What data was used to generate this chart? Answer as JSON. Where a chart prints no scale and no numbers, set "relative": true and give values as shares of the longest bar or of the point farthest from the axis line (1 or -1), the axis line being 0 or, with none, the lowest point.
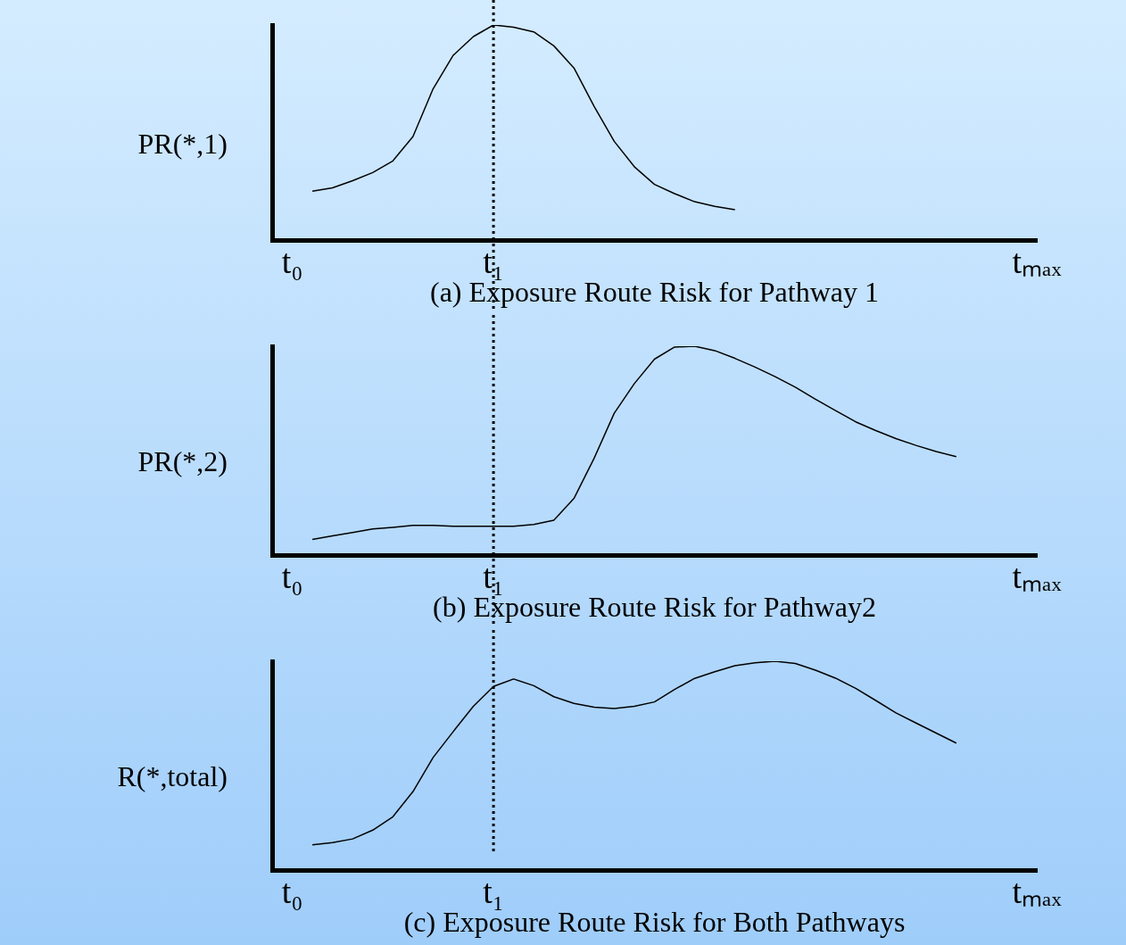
{
  "chart_data": [
    {
      "type": "line",
      "title": "(a) Exposure Route Risk for Pathway 1",
      "ylabel": "PR(*,1)",
      "relative": true,
      "grid": false,
      "legend": false,
      "tick_labels": "x",
      "marker": "none",
      "line_style": "solid",
      "categories": [
        null,
        "t₀",
        null,
        null,
        null,
        null,
        null,
        null,
        null,
        null,
        null,
        "t₁",
        null,
        null,
        null,
        null,
        null,
        null,
        null,
        null,
        null,
        null,
        null,
        null,
        null,
        null,
        null,
        null,
        null,
        null,
        null,
        null,
        null,
        null,
        null,
        null,
        null,
        null,
        "tₘₐₓ"
      ],
      "series": [
        {
          "color": "#000000",
          "values": [
            null,
            null,
            0.227,
            0.243,
            0.276,
            0.314,
            0.368,
            0.481,
            0.703,
            0.859,
            0.946,
            1.0,
            0.99,
            0.968,
            0.903,
            0.8,
            0.622,
            0.459,
            0.341,
            0.259,
            0.216,
            0.178,
            0.157,
            0.141,
            null,
            null,
            null,
            null,
            null,
            null,
            null,
            null,
            null,
            null,
            null,
            null,
            null,
            null,
            null
          ]
        }
      ],
      "ref_lines": [
        {
          "axis": "x",
          "value": "t₁",
          "line_style": "dotted",
          "color": "#000000"
        }
      ]
    },
    {
      "type": "line",
      "title": "(b) Exposure Route Risk for Pathway2",
      "ylabel": "PR(*,2)",
      "relative": true,
      "grid": false,
      "legend": false,
      "tick_labels": "x",
      "marker": "none",
      "line_style": "solid",
      "categories": [
        null,
        "t₀",
        null,
        null,
        null,
        null,
        null,
        null,
        null,
        null,
        null,
        "t₁",
        null,
        null,
        null,
        null,
        null,
        null,
        null,
        null,
        null,
        null,
        null,
        null,
        null,
        null,
        null,
        null,
        null,
        null,
        null,
        null,
        null,
        null,
        null,
        null,
        null,
        null,
        "tₘₐₓ"
      ],
      "series": [
        {
          "color": "#000000",
          "values": [
            null,
            null,
            0.075,
            0.092,
            0.108,
            0.125,
            0.133,
            0.142,
            0.142,
            0.138,
            0.138,
            0.138,
            0.138,
            0.146,
            0.167,
            0.271,
            0.463,
            0.679,
            0.821,
            0.938,
            0.996,
            1.0,
            0.979,
            0.942,
            0.9,
            0.854,
            0.804,
            0.746,
            0.692,
            0.638,
            0.596,
            0.558,
            0.525,
            0.496,
            0.471,
            null,
            null,
            null,
            null
          ]
        }
      ],
      "ref_lines": [
        {
          "axis": "x",
          "value": "t₁",
          "line_style": "dotted",
          "color": "#000000"
        }
      ]
    },
    {
      "type": "line",
      "title": "(c) Exposure Route Risk for Both Pathways",
      "ylabel": "R(*,total)",
      "relative": true,
      "grid": false,
      "legend": false,
      "tick_labels": "x",
      "marker": "none",
      "line_style": "solid",
      "categories": [
        null,
        "t₀",
        null,
        null,
        null,
        null,
        null,
        null,
        null,
        null,
        null,
        "t₁",
        null,
        null,
        null,
        null,
        null,
        null,
        null,
        null,
        null,
        null,
        null,
        null,
        null,
        null,
        null,
        null,
        null,
        null,
        null,
        null,
        null,
        null,
        null,
        null,
        null,
        null,
        "tₘₐₓ"
      ],
      "series": [
        {
          "color": "#000000",
          "values": [
            null,
            null,
            0.121,
            0.131,
            0.149,
            0.191,
            0.255,
            0.376,
            0.539,
            0.663,
            0.784,
            0.879,
            0.915,
            0.883,
            0.83,
            0.798,
            0.78,
            0.773,
            0.784,
            0.805,
            0.865,
            0.918,
            0.95,
            0.979,
            0.993,
            1.0,
            0.989,
            0.957,
            0.919,
            0.87,
            0.812,
            0.753,
            0.704,
            0.656,
            0.608,
            null,
            null,
            null,
            null
          ]
        }
      ],
      "ref_lines": [
        {
          "axis": "x",
          "value": "t₁",
          "line_style": "dotted",
          "color": "#000000"
        }
      ]
    }
  ]
}
